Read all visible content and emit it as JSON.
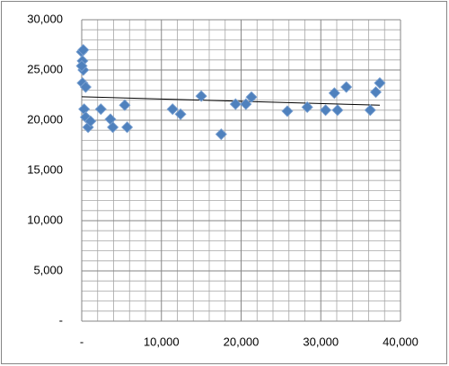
{
  "chart_data": {
    "type": "scatter",
    "series": [
      {
        "color": "#4f81bd",
        "x": [
          0,
          200,
          100,
          200,
          0,
          100,
          500,
          300,
          500,
          800,
          1100,
          2400,
          3600,
          3900,
          5400,
          5700,
          11400,
          12400,
          15000,
          17500,
          19300,
          20600,
          21300,
          25800,
          28300,
          30600,
          31700,
          32100,
          33200,
          36200,
          36900,
          37400
        ],
        "values": [
          26800,
          27000,
          25900,
          25000,
          25400,
          23700,
          23300,
          21100,
          20300,
          19300,
          19900,
          21100,
          20100,
          19300,
          21500,
          19300,
          21100,
          20600,
          22400,
          18600,
          21600,
          21600,
          22300,
          20900,
          21300,
          21000,
          22700,
          21000,
          23300,
          21000,
          22800,
          23700
        ]
      }
    ],
    "trendline": "linear",
    "xlim": [
      0,
      40000
    ],
    "xticks": [
      {
        "value": 0,
        "label": "-"
      },
      {
        "value": 10000,
        "label": "10,000"
      },
      {
        "value": 20000,
        "label": "20,000"
      },
      {
        "value": 30000,
        "label": "30,000"
      },
      {
        "value": 40000,
        "label": "40,000"
      }
    ],
    "ylim": [
      0,
      30000
    ],
    "yticks": [
      {
        "value": 0,
        "label": "-"
      },
      {
        "value": 5000,
        "label": "5,000"
      },
      {
        "value": 10000,
        "label": "10,000"
      },
      {
        "value": 15000,
        "label": "15,000"
      },
      {
        "value": 20000,
        "label": "20,000"
      },
      {
        "value": 25000,
        "label": "25,000"
      },
      {
        "value": 30000,
        "label": "30,000"
      }
    ],
    "grid": true,
    "minor_grid": true
  }
}
